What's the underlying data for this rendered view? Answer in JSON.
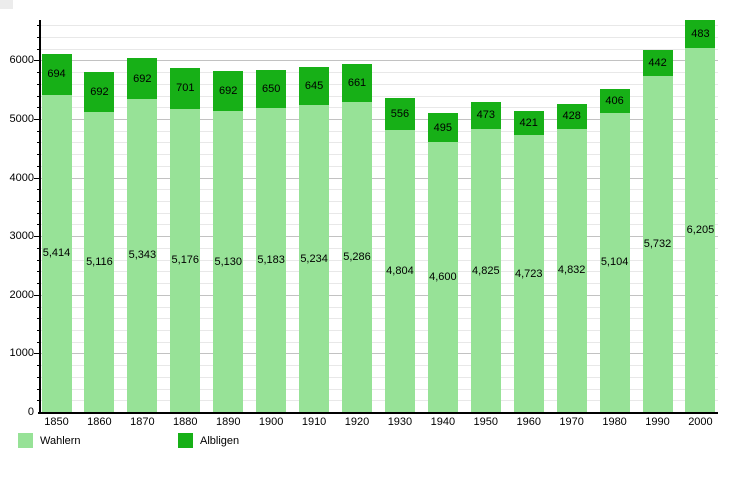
{
  "chart_data": {
    "type": "bar",
    "stacked": true,
    "title": "",
    "xlabel": "",
    "ylabel": "",
    "categories": [
      "1850",
      "1860",
      "1870",
      "1880",
      "1890",
      "1900",
      "1910",
      "1920",
      "1930",
      "1940",
      "1950",
      "1960",
      "1970",
      "1980",
      "1990",
      "2000"
    ],
    "series": [
      {
        "name": "Wahlern",
        "color": "#97e297",
        "values": [
          5414,
          5116,
          5343,
          5176,
          5130,
          5183,
          5234,
          5286,
          4804,
          4600,
          4825,
          4723,
          4832,
          5104,
          5732,
          6205
        ],
        "value_labels": [
          "5,414",
          "5,116",
          "5,343",
          "5,176",
          "5,130",
          "5,183",
          "5,234",
          "5,286",
          "4,804",
          "4,600",
          "4,825",
          "4,723",
          "4,832",
          "5,104",
          "5,732",
          "6,205"
        ]
      },
      {
        "name": "Albligen",
        "color": "#17b017",
        "values": [
          694,
          692,
          692,
          701,
          692,
          650,
          645,
          661,
          556,
          495,
          473,
          421,
          428,
          406,
          442,
          483
        ],
        "value_labels": [
          "694",
          "692",
          "692",
          "701",
          "692",
          "650",
          "645",
          "661",
          "556",
          "495",
          "473",
          "421",
          "428",
          "406",
          "442",
          "483"
        ]
      }
    ],
    "ylim": [
      0,
      6700
    ],
    "yticks": [
      "0",
      "1000",
      "2000",
      "3000",
      "4000",
      "5000",
      "6000"
    ],
    "ytick_interval": 1000,
    "minor_grid_interval": 200,
    "grid": "on",
    "gridline_color_minor": "#e8e8e8",
    "gridline_color_major": "#c2c2c2",
    "legend_position": "bottom-left"
  },
  "legend": {
    "items": [
      {
        "label": "Wahlern",
        "color": "#97e297"
      },
      {
        "label": "Albligen",
        "color": "#17b017"
      }
    ]
  }
}
